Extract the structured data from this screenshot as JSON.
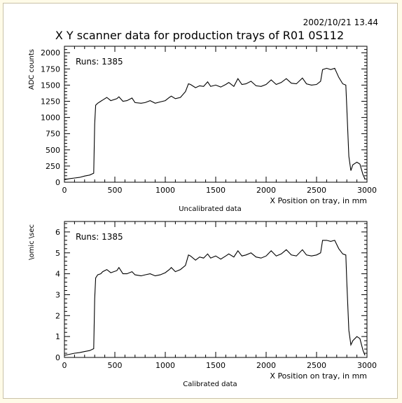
{
  "header": {
    "datetime": "2002/10/21   13.44",
    "title": "X  Y scanner data for production trays of R01 0S112"
  },
  "colors": {
    "background": "#fffbe8",
    "line": "#000000"
  },
  "chart_data": [
    {
      "type": "line",
      "xlabel": "X  Position on tray, in mm",
      "ylabel": "ADC counts",
      "caption": "Uncalibrated data",
      "annotation": "Runs: 1385",
      "xlim": [
        0,
        3000
      ],
      "ylim": [
        0,
        2100
      ],
      "xticks": [
        0,
        500,
        1000,
        1500,
        2000,
        2500,
        3000
      ],
      "yticks": [
        0,
        250,
        500,
        750,
        1000,
        1250,
        1500,
        1750,
        2000
      ],
      "x": [
        0,
        50,
        100,
        150,
        200,
        250,
        290,
        300,
        310,
        330,
        360,
        380,
        420,
        460,
        520,
        540,
        580,
        620,
        670,
        700,
        760,
        800,
        850,
        900,
        950,
        1000,
        1040,
        1060,
        1100,
        1150,
        1200,
        1230,
        1250,
        1300,
        1340,
        1380,
        1420,
        1450,
        1500,
        1550,
        1600,
        1630,
        1680,
        1720,
        1760,
        1800,
        1850,
        1900,
        1950,
        2000,
        2050,
        2100,
        2150,
        2200,
        2250,
        2300,
        2360,
        2400,
        2450,
        2500,
        2540,
        2560,
        2600,
        2640,
        2680,
        2720,
        2760,
        2790,
        2800,
        2820,
        2840,
        2860,
        2900,
        2930,
        2960,
        2980
      ],
      "y": [
        40,
        55,
        65,
        75,
        95,
        110,
        140,
        900,
        1190,
        1220,
        1250,
        1270,
        1310,
        1260,
        1290,
        1320,
        1250,
        1260,
        1300,
        1230,
        1220,
        1230,
        1260,
        1220,
        1240,
        1260,
        1310,
        1330,
        1290,
        1310,
        1400,
        1520,
        1510,
        1460,
        1490,
        1480,
        1550,
        1480,
        1500,
        1470,
        1510,
        1540,
        1480,
        1600,
        1510,
        1520,
        1560,
        1490,
        1480,
        1510,
        1580,
        1510,
        1540,
        1600,
        1530,
        1520,
        1610,
        1520,
        1500,
        1510,
        1560,
        1740,
        1760,
        1740,
        1760,
        1620,
        1520,
        1500,
        1150,
        400,
        180,
        270,
        310,
        280,
        120,
        50
      ]
    },
    {
      "type": "line",
      "xlabel": "X  Position on tray, in mm",
      "ylabel": "\\omic \\sec",
      "caption": "Calibrated data",
      "annotation": "Runs: 1385",
      "xlim": [
        0,
        3000
      ],
      "ylim": [
        0,
        6.5
      ],
      "xticks": [
        0,
        500,
        1000,
        1500,
        2000,
        2500,
        3000
      ],
      "yticks": [
        0,
        1,
        2,
        3,
        4,
        5,
        6
      ],
      "x": [
        0,
        50,
        100,
        150,
        200,
        250,
        290,
        300,
        310,
        330,
        360,
        380,
        420,
        460,
        520,
        540,
        580,
        620,
        670,
        700,
        760,
        800,
        850,
        900,
        950,
        1000,
        1040,
        1060,
        1100,
        1150,
        1200,
        1230,
        1250,
        1300,
        1340,
        1380,
        1420,
        1450,
        1500,
        1550,
        1600,
        1630,
        1680,
        1720,
        1760,
        1800,
        1850,
        1900,
        1950,
        2000,
        2050,
        2100,
        2150,
        2200,
        2250,
        2300,
        2360,
        2400,
        2450,
        2500,
        2540,
        2560,
        2600,
        2640,
        2680,
        2720,
        2760,
        2790,
        2800,
        2820,
        2840,
        2860,
        2900,
        2930,
        2960,
        2980
      ],
      "y": [
        0.1,
        0.15,
        0.2,
        0.23,
        0.28,
        0.33,
        0.42,
        2.8,
        3.8,
        3.95,
        4.0,
        4.1,
        4.2,
        4.05,
        4.15,
        4.3,
        4.0,
        4.0,
        4.1,
        3.95,
        3.9,
        3.95,
        4.0,
        3.9,
        3.95,
        4.05,
        4.2,
        4.3,
        4.1,
        4.2,
        4.4,
        4.9,
        4.85,
        4.65,
        4.8,
        4.75,
        4.95,
        4.75,
        4.85,
        4.7,
        4.85,
        4.95,
        4.8,
        5.1,
        4.85,
        4.9,
        5.0,
        4.8,
        4.75,
        4.85,
        5.1,
        4.85,
        4.95,
        5.15,
        4.9,
        4.85,
        5.15,
        4.9,
        4.85,
        4.9,
        5.0,
        5.6,
        5.6,
        5.55,
        5.6,
        5.2,
        4.95,
        4.9,
        3.6,
        1.3,
        0.6,
        0.8,
        1.0,
        0.9,
        0.35,
        0.1
      ]
    }
  ]
}
